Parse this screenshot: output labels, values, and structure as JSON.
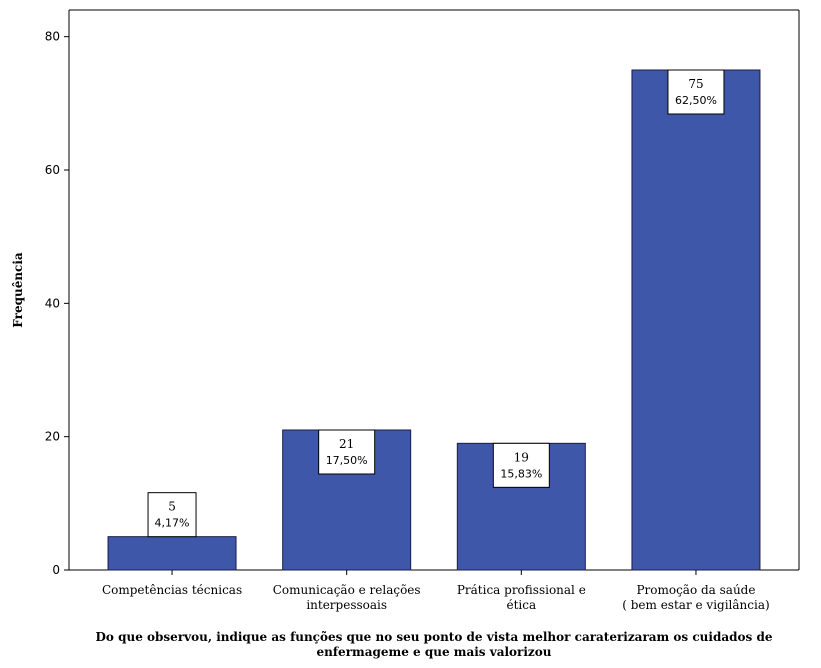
{
  "chart_data": {
    "type": "bar",
    "categories": [
      [
        "Competências técnicas"
      ],
      [
        "Comunicação e relações",
        "interpessoais"
      ],
      [
        "Prática profissional e",
        "ética"
      ],
      [
        "Promoção da saúde",
        "( bem estar e vigilância)"
      ]
    ],
    "values": [
      5,
      21,
      19,
      75
    ],
    "percent_labels": [
      "4,17%",
      "17,50%",
      "15,83%",
      "62,50%"
    ],
    "ylabel": "Frequência",
    "xlabel": [
      "Do que observou, indique as funções que no seu ponto de vista melhor caraterizaram os cuidados de",
      "enfermageme e que mais valorizou"
    ],
    "ylim": [
      0,
      84
    ],
    "yticks": [
      0,
      20,
      40,
      60,
      80
    ],
    "grid": false,
    "legend": "none",
    "colors": {
      "bar_fill": "#3f57a8",
      "bar_stroke": "#1b1b4b",
      "axis": "#000000",
      "label_box": "#ffffff"
    }
  }
}
